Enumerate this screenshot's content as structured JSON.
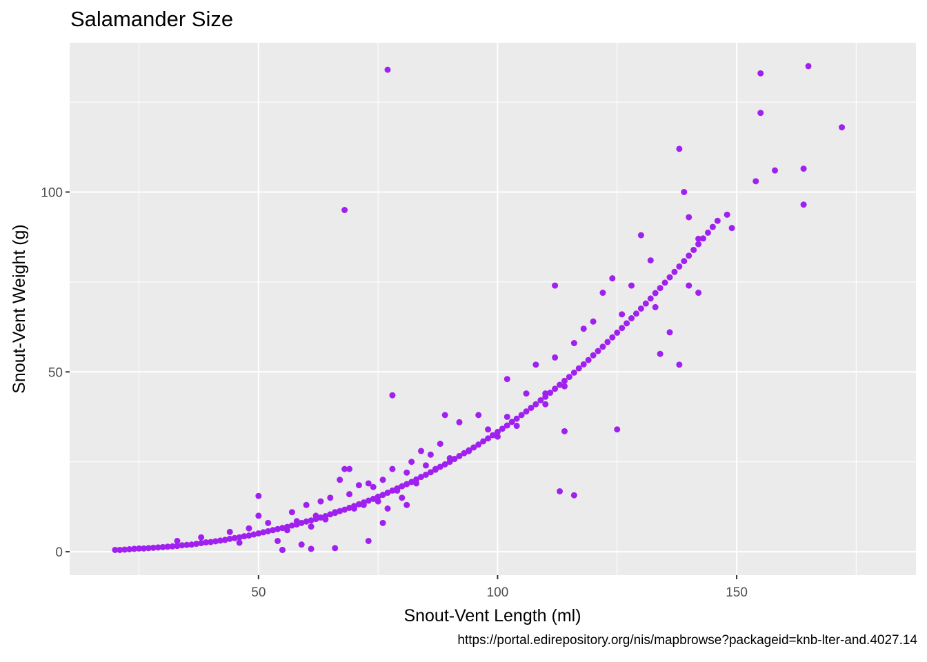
{
  "chart_data": {
    "type": "scatter",
    "title": "Salamander Size",
    "xlabel": "Snout-Vent Length (ml)",
    "ylabel": "Snout-Vent Weight (g)",
    "caption": "https://portal.edirepository.org/nis/mapbrowse?packageid=knb-lter-and.4027.14",
    "xlim": [
      10.5,
      187.5
    ],
    "ylim": [
      -6.5,
      141.5
    ],
    "x_ticks": [
      50,
      100,
      150
    ],
    "x_minor_ticks": [
      25,
      75,
      125,
      175
    ],
    "y_ticks": [
      0,
      50,
      100
    ],
    "y_minor_ticks": [
      25,
      75,
      125
    ],
    "grid": true,
    "colors": {
      "point": "#A020F0",
      "panel": "#EBEBEB",
      "grid": "#FFFFFF"
    },
    "series": [
      {
        "x": [
          20,
          21,
          22,
          23,
          24,
          25,
          26,
          27,
          28,
          29,
          30,
          31,
          32,
          33,
          34,
          35,
          36,
          37,
          38,
          39,
          40,
          41,
          42,
          43,
          44,
          45,
          46,
          47,
          48,
          49,
          50,
          51,
          52,
          53,
          54,
          55,
          56,
          57,
          58,
          59,
          60,
          61,
          62,
          63,
          64,
          65,
          66,
          67,
          68,
          69,
          70,
          71,
          72,
          73,
          74,
          75,
          76,
          77,
          78,
          79,
          80,
          81,
          82,
          83,
          84,
          85,
          86,
          87,
          88,
          89,
          90,
          91,
          92,
          93,
          94,
          95,
          96,
          97,
          98,
          99,
          100,
          101,
          102,
          103,
          104,
          105,
          106,
          107,
          108,
          109,
          110,
          111,
          112,
          113,
          114,
          115,
          116,
          117,
          118,
          119,
          120,
          121,
          122,
          123,
          124,
          125,
          126,
          127,
          128,
          129,
          130,
          131,
          132,
          133,
          134,
          135,
          136,
          137,
          138,
          139,
          140,
          141,
          142,
          143,
          144,
          145,
          146,
          148,
          33,
          38,
          44,
          46,
          48,
          50,
          50,
          52,
          54,
          55,
          56,
          57,
          58,
          59,
          60,
          61,
          62,
          63,
          64,
          65,
          66,
          67,
          68,
          69,
          70,
          71,
          72,
          73,
          74,
          75,
          76,
          77,
          78,
          79,
          80,
          81,
          82,
          83,
          84,
          85,
          86,
          87,
          88,
          89,
          90,
          92,
          94,
          96,
          98,
          100,
          102,
          104,
          106,
          108,
          110,
          112,
          114,
          116,
          118,
          120,
          122,
          124,
          126,
          128,
          130,
          132,
          134,
          136,
          77,
          68,
          78,
          113,
          116,
          112,
          133,
          138,
          140,
          140,
          142,
          138,
          142,
          139,
          149,
          155,
          155,
          158,
          154,
          164,
          164,
          165,
          172,
          55,
          61,
          66,
          69,
          73,
          76,
          81,
          102,
          125,
          110,
          114
        ],
        "y": [
          0.5,
          0.5,
          0.6,
          0.7,
          0.8,
          0.9,
          0.9,
          1.0,
          1.1,
          1.2,
          1.3,
          1.4,
          1.5,
          1.6,
          1.8,
          1.9,
          2.0,
          2.2,
          2.4,
          2.6,
          2.7,
          2.9,
          3.1,
          3.3,
          3.6,
          3.8,
          4.0,
          4.3,
          4.5,
          4.8,
          5.1,
          5.4,
          5.7,
          6.0,
          6.3,
          6.6,
          6.9,
          7.3,
          7.6,
          8.0,
          8.4,
          8.7,
          9.1,
          9.5,
          9.9,
          10.4,
          10.8,
          11.3,
          11.7,
          12.2,
          12.7,
          13.2,
          13.7,
          14.2,
          14.7,
          15.3,
          15.8,
          16.4,
          17.0,
          17.6,
          18.2,
          18.8,
          19.4,
          20.1,
          20.8,
          21.4,
          22.1,
          22.8,
          23.6,
          24.3,
          25.0,
          25.8,
          26.6,
          27.4,
          28.2,
          29.0,
          29.8,
          30.7,
          31.5,
          32.4,
          33.3,
          34.2,
          35.1,
          36.1,
          37.0,
          38.0,
          39.0,
          40.0,
          41.0,
          42.1,
          43.1,
          44.2,
          45.3,
          46.4,
          47.5,
          48.6,
          49.8,
          51.0,
          52.1,
          53.3,
          54.6,
          55.8,
          57.0,
          58.3,
          59.6,
          60.9,
          62.2,
          63.5,
          64.9,
          66.2,
          67.6,
          69.0,
          70.4,
          71.9,
          73.3,
          74.8,
          76.3,
          77.8,
          79.3,
          80.8,
          82.3,
          83.9,
          85.5,
          87.1,
          88.7,
          90.3,
          92.0,
          93.7,
          3.0,
          4.0,
          5.5,
          2.5,
          6.5,
          15.5,
          10.0,
          8.0,
          3.0,
          0.5,
          6.0,
          11.0,
          8.5,
          2.0,
          13.0,
          7.0,
          10.0,
          14.0,
          9.0,
          15.0,
          11.0,
          20.0,
          23.0,
          16.0,
          12.0,
          18.5,
          13.0,
          19.0,
          18.0,
          14.0,
          20.0,
          12.0,
          23.0,
          17.0,
          15.0,
          22.0,
          25.0,
          19.0,
          28.0,
          24.0,
          27.0,
          23.0,
          30.0,
          38.0,
          26.0,
          36.0,
          28.0,
          38.0,
          34.0,
          32.0,
          48.0,
          35.0,
          44.0,
          52.0,
          44.0,
          54.0,
          46.0,
          58.0,
          62.0,
          64.0,
          72.0,
          76.0,
          66.0,
          74.0,
          88.0,
          81.0,
          55.0,
          61.0,
          134.0,
          95.0,
          43.5,
          16.8,
          15.7,
          74.0,
          68.0,
          52.0,
          93.0,
          74.0,
          87.0,
          112.0,
          72.0,
          100.0,
          90.0,
          133.0,
          122.0,
          106.0,
          103.0,
          106.5,
          96.5,
          135.0,
          118.0,
          0.5,
          0.8,
          1.0,
          23.0,
          3.0,
          8.0,
          13.0,
          37.5,
          34.0,
          41.0,
          33.5
        ]
      }
    ]
  }
}
